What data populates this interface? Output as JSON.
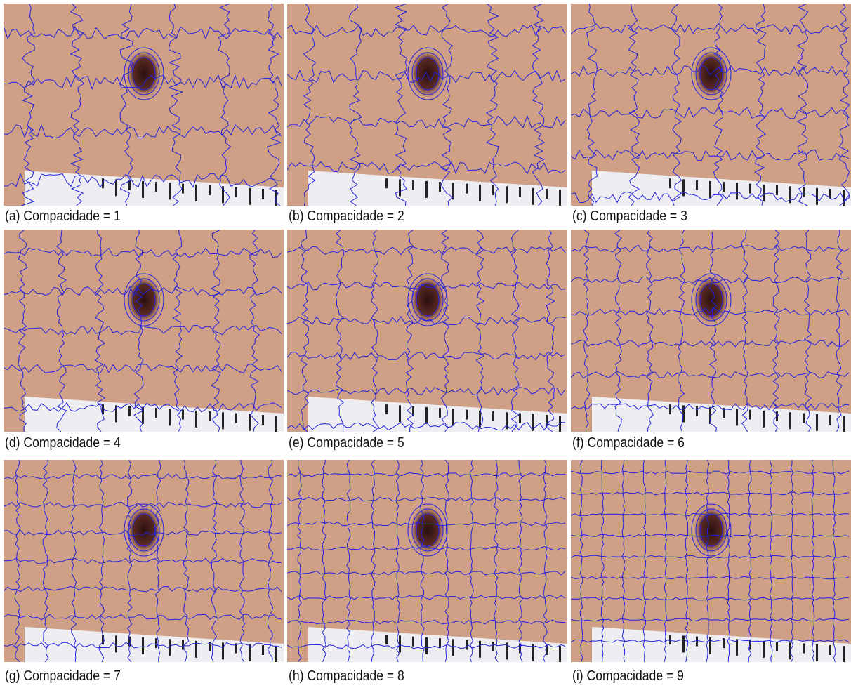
{
  "figure": {
    "panels": [
      {
        "caption": "(a) Compacidade = 1"
      },
      {
        "caption": "(b) Compacidade = 2"
      },
      {
        "caption": "(c) Compacidade = 3"
      },
      {
        "caption": "(d) Compacidade = 4"
      },
      {
        "caption": "(e) Compacidade = 5"
      },
      {
        "caption": "(f) Compacidade = 6"
      },
      {
        "caption": "(g) Compacidade = 7"
      },
      {
        "caption": "(h) Compacidade = 8"
      },
      {
        "caption": "(i) Compacidade = 9"
      }
    ]
  }
}
